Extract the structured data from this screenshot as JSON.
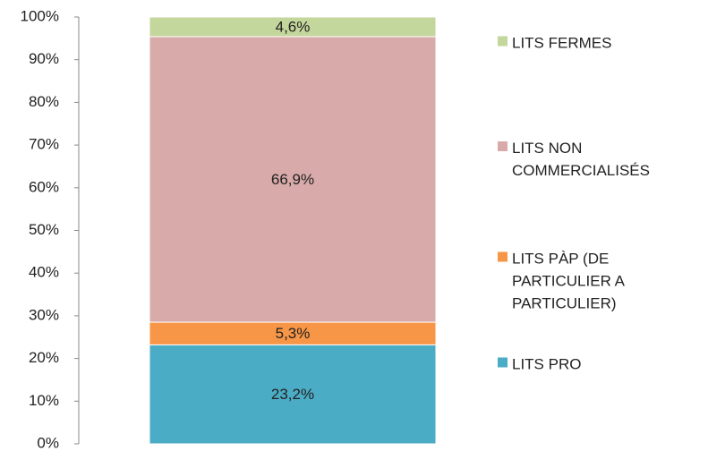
{
  "chart_data": {
    "type": "stacked_bar",
    "categories": [
      null
    ],
    "series": [
      {
        "name": "LITS PRO",
        "color": "#4bacc6",
        "values": [
          23.2
        ],
        "value_labels": [
          "23,2%"
        ]
      },
      {
        "name": "LITS PÀP (DE PARTICULIER A PARTICULIER)",
        "color": "#f79646",
        "values": [
          5.3
        ],
        "value_labels": [
          "5,3%"
        ]
      },
      {
        "name": "LITS NON COMMERCIALISÉS",
        "color": "#d9aaaa",
        "values": [
          66.9
        ],
        "value_labels": [
          "66,9%"
        ]
      },
      {
        "name": "LITS FERMES",
        "color": "#c3d69b",
        "values": [
          4.6
        ],
        "value_labels": [
          "4,6%"
        ]
      }
    ],
    "ylim": [
      0,
      100
    ],
    "yticks": [
      {
        "value": 0,
        "label": "0%"
      },
      {
        "value": 10,
        "label": "10%"
      },
      {
        "value": 20,
        "label": "20%"
      },
      {
        "value": 30,
        "label": "30%"
      },
      {
        "value": 40,
        "label": "40%"
      },
      {
        "value": 50,
        "label": "50%"
      },
      {
        "value": 60,
        "label": "60%"
      },
      {
        "value": 70,
        "label": "70%"
      },
      {
        "value": 80,
        "label": "80%"
      },
      {
        "value": 90,
        "label": "90%"
      },
      {
        "value": 100,
        "label": "100%"
      }
    ],
    "legend": "right"
  }
}
